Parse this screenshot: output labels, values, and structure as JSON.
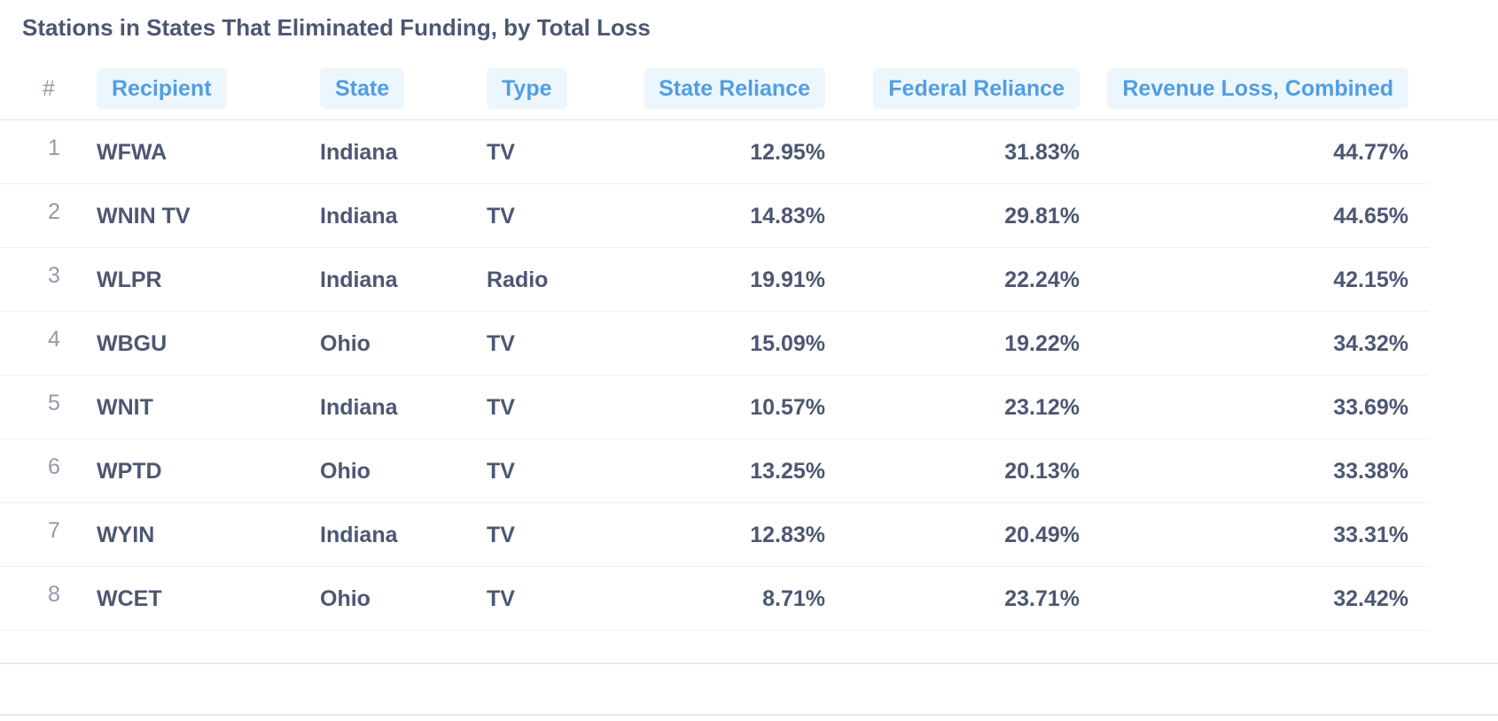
{
  "chart_data": {
    "type": "table",
    "title": "Stations in States That Eliminated Funding, by Total Loss",
    "index_header": "#",
    "columns": [
      "Recipient",
      "State",
      "Type",
      "State Reliance",
      "Federal Reliance",
      "Revenue Loss, Combined"
    ],
    "rows": [
      {
        "index": "1",
        "recipient": "WFWA",
        "state": "Indiana",
        "type": "TV",
        "state_reliance": "12.95%",
        "federal_reliance": "31.83%",
        "revenue_loss": "44.77%"
      },
      {
        "index": "2",
        "recipient": "WNIN TV",
        "state": "Indiana",
        "type": "TV",
        "state_reliance": "14.83%",
        "federal_reliance": "29.81%",
        "revenue_loss": "44.65%"
      },
      {
        "index": "3",
        "recipient": "WLPR",
        "state": "Indiana",
        "type": "Radio",
        "state_reliance": "19.91%",
        "federal_reliance": "22.24%",
        "revenue_loss": "42.15%"
      },
      {
        "index": "4",
        "recipient": "WBGU",
        "state": "Ohio",
        "type": "TV",
        "state_reliance": "15.09%",
        "federal_reliance": "19.22%",
        "revenue_loss": "34.32%"
      },
      {
        "index": "5",
        "recipient": "WNIT",
        "state": "Indiana",
        "type": "TV",
        "state_reliance": "10.57%",
        "federal_reliance": "23.12%",
        "revenue_loss": "33.69%"
      },
      {
        "index": "6",
        "recipient": "WPTD",
        "state": "Ohio",
        "type": "TV",
        "state_reliance": "13.25%",
        "federal_reliance": "20.13%",
        "revenue_loss": "33.38%"
      },
      {
        "index": "7",
        "recipient": "WYIN",
        "state": "Indiana",
        "type": "TV",
        "state_reliance": "12.83%",
        "federal_reliance": "20.49%",
        "revenue_loss": "33.31%"
      },
      {
        "index": "8",
        "recipient": "WCET",
        "state": "Ohio",
        "type": "TV",
        "state_reliance": "8.71%",
        "federal_reliance": "23.71%",
        "revenue_loss": "32.42%"
      }
    ]
  },
  "colors": {
    "header_text": "#509ee3",
    "header_pill_bg": "#eef6fd",
    "body_text": "#4c5773",
    "index_text": "#949aab",
    "divider": "#eef0f4"
  }
}
